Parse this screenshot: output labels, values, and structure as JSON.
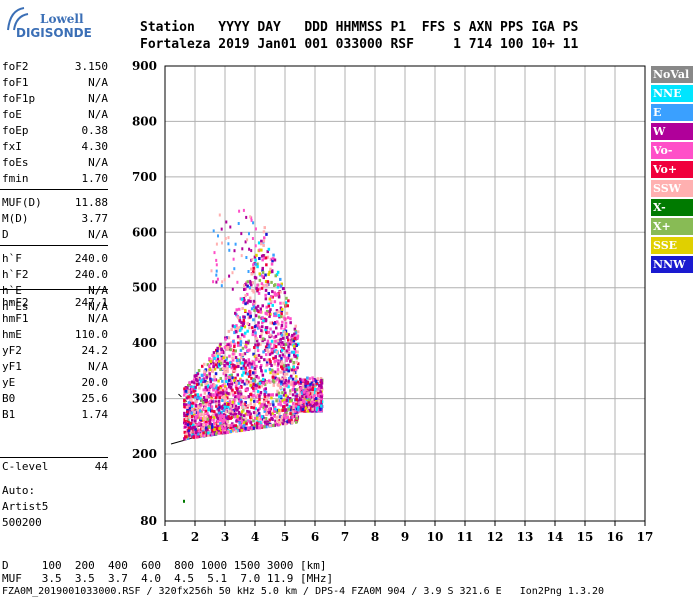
{
  "logo": {
    "line1": "Lowell",
    "line2": "DIGISONDE"
  },
  "header": {
    "row1": "Station   YYYY DAY   DDD HHMMSS P1  FFS S AXN PPS IGA PS",
    "row2": "Fortaleza 2019 Jan01 001 033000 RSF     1 714 100 10+ 11"
  },
  "params_group1": [
    {
      "k": "foF2",
      "v": "3.150"
    },
    {
      "k": "foF1",
      "v": "N/A"
    },
    {
      "k": "foF1p",
      "v": "N/A"
    },
    {
      "k": "foE",
      "v": "N/A"
    },
    {
      "k": "foEp",
      "v": "0.38"
    },
    {
      "k": "fxI",
      "v": "4.30"
    },
    {
      "k": "foEs",
      "v": "N/A"
    },
    {
      "k": "fmin",
      "v": "1.70"
    }
  ],
  "params_group2": [
    {
      "k": "MUF(D)",
      "v": "11.88"
    },
    {
      "k": "M(D)",
      "v": "3.77"
    },
    {
      "k": "D",
      "v": "N/A"
    }
  ],
  "params_group3": [
    {
      "k": "h`F",
      "v": "240.0"
    },
    {
      "k": "h`F2",
      "v": "240.0"
    },
    {
      "k": "h`E",
      "v": "N/A"
    },
    {
      "k": "h`Es",
      "v": "N/A"
    }
  ],
  "params_group4": [
    {
      "k": "hmF2",
      "v": "247.1"
    },
    {
      "k": "hmF1",
      "v": "N/A"
    },
    {
      "k": "hmE",
      "v": "110.0"
    },
    {
      "k": "yF2",
      "v": "24.2"
    },
    {
      "k": "yF1",
      "v": "N/A"
    },
    {
      "k": "yE",
      "v": "20.0"
    },
    {
      "k": "B0",
      "v": "25.6"
    },
    {
      "k": "B1",
      "v": "1.74"
    }
  ],
  "clevel": {
    "k": "C-level",
    "v": "44"
  },
  "auto": {
    "line1": "Auto:",
    "line2": "Artist5",
    "line3": "500200"
  },
  "legend": [
    {
      "label": "NoVal",
      "color": "#888888",
      "text": "#ffffff"
    },
    {
      "label": "NNE",
      "color": "#00e5ff",
      "text": "#ffffff"
    },
    {
      "label": "E",
      "color": "#3aa0ff",
      "text": "#ffffff"
    },
    {
      "label": "W",
      "color": "#b0009a",
      "text": "#ffffff"
    },
    {
      "label": "Vo-",
      "color": "#ff4fc8",
      "text": "#ffffff"
    },
    {
      "label": "Vo+",
      "color": "#f0003c",
      "text": "#ffffff"
    },
    {
      "label": "SSW",
      "color": "#ffb0b0",
      "text": "#ffffff"
    },
    {
      "label": "X-",
      "color": "#007a00",
      "text": "#ffffff"
    },
    {
      "label": "X+",
      "color": "#88bb55",
      "text": "#ffffff"
    },
    {
      "label": "SSE",
      "color": "#e0d000",
      "text": "#ffffff"
    },
    {
      "label": "NNW",
      "color": "#1a1ad0",
      "text": "#ffffff"
    }
  ],
  "chart_data": {
    "type": "scatter",
    "xlim": [
      1,
      17
    ],
    "ylim": [
      80,
      900
    ],
    "x_ticks": [
      "1",
      "2",
      "3",
      "4",
      "5",
      "6",
      "7",
      "8",
      "9",
      "10",
      "11",
      "12",
      "13",
      "14",
      "15",
      "16",
      "17"
    ],
    "y_ticks": [
      "80",
      "200",
      "300",
      "400",
      "500",
      "600",
      "700",
      "800",
      "900"
    ],
    "grid": true,
    "legend_placement": "right"
  },
  "footer": {
    "row1": "D     100  200  400  600  800 1000 1500 3000 [km]",
    "row2": "MUF   3.5  3.5  3.7  4.0  4.5  5.1  7.0 11.9 [MHz]",
    "row3": "FZA0M_2019001033000.RSF / 320fx256h 50 kHz 5.0 km / DPS-4 FZA0M 904 / 3.9 S 321.6 E   Ion2Png 1.3.20"
  }
}
